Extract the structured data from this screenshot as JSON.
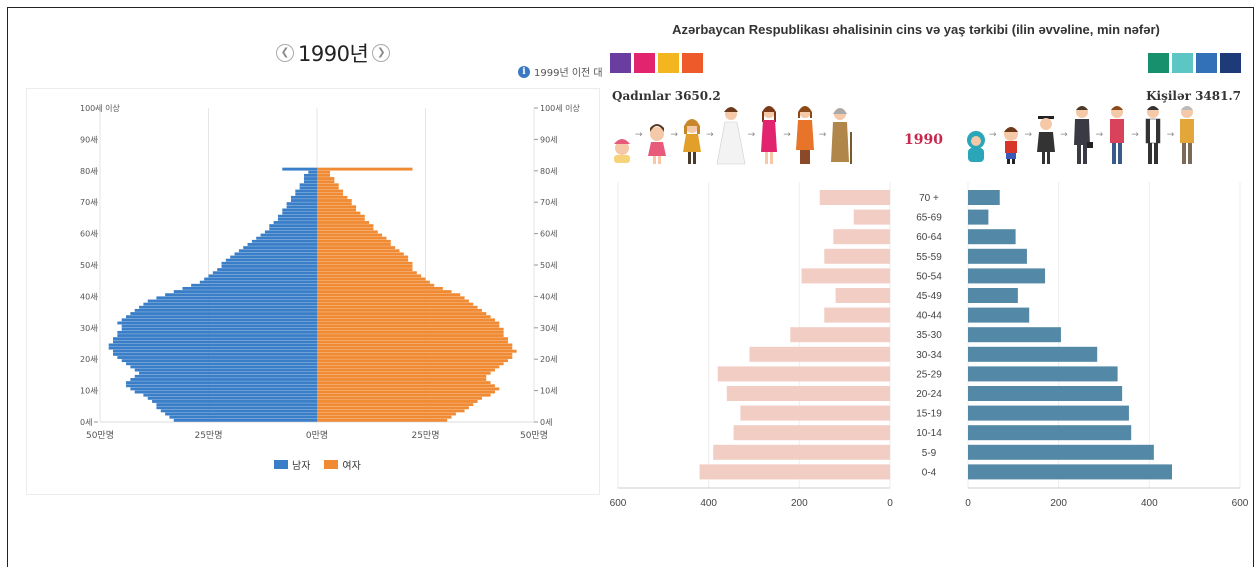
{
  "left": {
    "year": "1990년",
    "prev_icon": "chevron-left-icon",
    "next_icon": "chevron-right-icon",
    "note": "1999년 이전 대",
    "legend": [
      {
        "label": "남자",
        "color": "#3a7ec8"
      },
      {
        "label": "여자",
        "color": "#f08a33"
      }
    ]
  },
  "right": {
    "title": "Azərbaycan Respublikası əhalisinin cins və yaş tərkibi (ilin əvvəline, min nəfər)",
    "women_label": "Qadınlar 3650.2",
    "men_label": "Kişilər 3481.7",
    "year": "1990",
    "left_swatches": [
      "#6a3ea0",
      "#e2246e",
      "#f3b61f",
      "#ee5a2a"
    ],
    "right_swatches": [
      "#17906e",
      "#5cc6c4",
      "#3270b8",
      "#1f3a78"
    ],
    "women_icons": [
      "baby-girl-icon",
      "girl-icon",
      "schoolgirl-icon",
      "bride-icon",
      "woman-icon",
      "middle-aged-woman-icon",
      "elderly-woman-icon"
    ],
    "men_icons": [
      "baby-boy-icon",
      "boy-icon",
      "graduate-icon",
      "businessman-icon",
      "man-icon",
      "middle-aged-man-icon",
      "elderly-man-icon"
    ]
  },
  "chart_data": [
    {
      "type": "bar",
      "orientation": "horizontal",
      "year": "1990",
      "y_tick_labels": [
        "0세",
        "10세",
        "20세",
        "30세",
        "40세",
        "50세",
        "60세",
        "70세",
        "80세",
        "90세",
        "100세 이상"
      ],
      "x_tick_labels": [
        "50만명",
        "25만명",
        "0만명",
        "25만명",
        "50만명"
      ],
      "xlim": [
        -50,
        50
      ],
      "ages": {
        "start": 0,
        "end": 100
      },
      "series": [
        {
          "name": "남자",
          "color": "#3a7ec8",
          "values": [
            33,
            34,
            35,
            36,
            37,
            37,
            38,
            39,
            40,
            42,
            43,
            44,
            44,
            43,
            42,
            41,
            42,
            43,
            44,
            45,
            46,
            47,
            47,
            48,
            48,
            47,
            47,
            46,
            46,
            45,
            45,
            46,
            45,
            44,
            43,
            42,
            41,
            40,
            39,
            37,
            35,
            33,
            31,
            29,
            27,
            26,
            25,
            24,
            23,
            22,
            22,
            21,
            20,
            19,
            18,
            17,
            16,
            15,
            14,
            13,
            12,
            11,
            11,
            10,
            9,
            9,
            8,
            8,
            7,
            7,
            6,
            6,
            5,
            5,
            4,
            4,
            3,
            3,
            3,
            2,
            8,
            0,
            0,
            0,
            0,
            0,
            0,
            0,
            0,
            0,
            0,
            0,
            0,
            0,
            0,
            0,
            0,
            0,
            0,
            0,
            0
          ]
        },
        {
          "name": "여자",
          "color": "#f08a33",
          "values": [
            30,
            31,
            32,
            34,
            35,
            36,
            37,
            38,
            40,
            41,
            42,
            41,
            40,
            39,
            39,
            40,
            41,
            42,
            43,
            44,
            45,
            45,
            46,
            45,
            45,
            44,
            44,
            43,
            43,
            43,
            42,
            42,
            41,
            40,
            39,
            38,
            37,
            36,
            35,
            34,
            33,
            31,
            29,
            27,
            26,
            25,
            24,
            23,
            22,
            22,
            22,
            21,
            21,
            20,
            19,
            18,
            17,
            17,
            16,
            15,
            14,
            13,
            13,
            12,
            11,
            11,
            10,
            9,
            9,
            8,
            8,
            7,
            6,
            6,
            5,
            5,
            4,
            4,
            3,
            3,
            22,
            0,
            0,
            0,
            0,
            0,
            0,
            0,
            0,
            0,
            0,
            0,
            0,
            0,
            0,
            0,
            0,
            0,
            0,
            0,
            0
          ]
        }
      ],
      "grid": true
    },
    {
      "type": "bar",
      "orientation": "horizontal",
      "title": "Azərbaycan Respublikası əhalisinin cins və yaş tərkibi (ilin əvvəline, min nəfər)",
      "categories": [
        "70 +",
        "65-69",
        "60-64",
        "55-59",
        "50-54",
        "45-49",
        "40-44",
        "35-30",
        "30-34",
        "25-29",
        "20-24",
        "15-19",
        "10-14",
        "5-9",
        "0-4"
      ],
      "x_tick_labels_women": [
        "600",
        "400",
        "200",
        "0"
      ],
      "x_tick_labels_men": [
        "0",
        "200",
        "400",
        "600"
      ],
      "xlim": [
        0,
        600
      ],
      "series": [
        {
          "name": "Qadınlar 3650.2",
          "color": "#f2cdc4",
          "values": [
            155,
            80,
            125,
            145,
            195,
            120,
            145,
            220,
            310,
            380,
            360,
            330,
            345,
            390,
            420
          ]
        },
        {
          "name": "Kişilər 3481.7",
          "color": "#5388a6",
          "values": [
            70,
            45,
            105,
            130,
            170,
            110,
            135,
            205,
            285,
            330,
            340,
            355,
            360,
            410,
            450
          ]
        }
      ],
      "grid": true
    }
  ]
}
